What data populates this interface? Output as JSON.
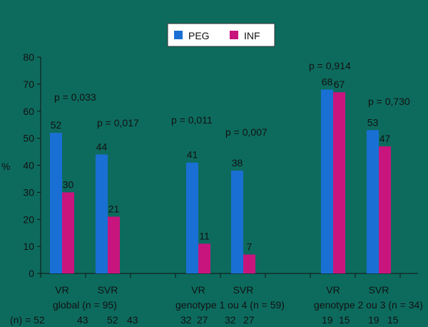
{
  "chart_data": {
    "type": "bar",
    "ylabel": "%",
    "ylim": [
      0,
      80
    ],
    "yticks": [
      0,
      10,
      20,
      30,
      40,
      50,
      60,
      70,
      80
    ],
    "legend_position": "top-center",
    "grid": false,
    "series": [
      {
        "name": "PEG",
        "color": "#1a6fd4"
      },
      {
        "name": "INF",
        "color": "#c8157e"
      }
    ],
    "groups": [
      {
        "label": "global (n = 95)",
        "n_row": [
          "(n) = 52",
          "43",
          "52",
          "43"
        ],
        "bars": [
          {
            "category": "VR",
            "values": [
              52,
              30
            ]
          },
          {
            "category": "SVR",
            "values": [
              44,
              21
            ]
          }
        ]
      },
      {
        "label": "genotype 1 ou 4 (n = 59)",
        "n_row": [
          "32",
          "27",
          "32",
          "27"
        ],
        "bars": [
          {
            "category": "VR",
            "values": [
              41,
              11
            ]
          },
          {
            "category": "SVR",
            "values": [
              38,
              7
            ]
          }
        ]
      },
      {
        "label": "genotype 2 ou 3 (n = 34)",
        "n_row": [
          "19",
          "15",
          "19",
          "15"
        ],
        "bars": [
          {
            "category": "VR",
            "values": [
              68,
              67
            ]
          },
          {
            "category": "SVR",
            "values": [
              53,
              47
            ]
          }
        ]
      }
    ],
    "annotations": [
      "p = 0,033",
      "p = 0,017",
      "p = 0,011",
      "p = 0,007",
      "p = 0,914",
      "p = 0,730"
    ]
  }
}
